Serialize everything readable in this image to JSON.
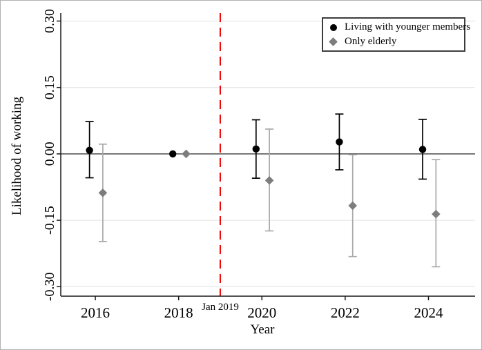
{
  "figure": {
    "background": "#ffffff",
    "border_color": "#b0b0b0"
  },
  "chart_data": {
    "type": "scatter",
    "subtype": "coefficient-plot-with-ci",
    "title": "",
    "xlabel": "Year",
    "ylabel": "Likelihood of working",
    "x_ticks": [
      2016,
      2018,
      2020,
      2022,
      2024
    ],
    "x_tick_labels": [
      "2016",
      "2018",
      "2020",
      "2022",
      "2024"
    ],
    "y_ticks": [
      0.3,
      0.15,
      0.0,
      -0.15,
      -0.3
    ],
    "y_tick_labels": [
      "0.30",
      "0.15",
      "0.00",
      "-0.15",
      "-0.30"
    ],
    "xlim": [
      2015.17,
      2025.12
    ],
    "ylim": [
      -0.32,
      0.315
    ],
    "grid": true,
    "zero_reference_line": 0,
    "legend_position": "top-right",
    "vline": {
      "x": 2019.0,
      "label": "Jan 2019",
      "color": "#ee0000",
      "style": "dashed"
    },
    "colors": {
      "grid": "#e8e8e8",
      "zero_line": "#3c3c3c",
      "axis": "#1a1a1a",
      "text": "#000000"
    },
    "series": [
      {
        "name": "Living with younger members",
        "marker": "circle",
        "color": "#000000",
        "bar_color": "#000000",
        "x_offset_years": -0.14,
        "x": [
          2016,
          2018,
          2020,
          2022,
          2024
        ],
        "y": [
          0.008,
          0.0,
          0.011,
          0.027,
          0.01
        ],
        "ci_high": [
          0.073,
          null,
          0.077,
          0.09,
          0.078
        ],
        "ci_low": [
          -0.054,
          null,
          -0.055,
          -0.036,
          -0.057
        ],
        "reference_year": 2018
      },
      {
        "name": "Only elderly",
        "marker": "diamond",
        "color": "#7d7d7d",
        "bar_color": "#a9a9a9",
        "x_offset_years": 0.18,
        "x": [
          2016,
          2018,
          2020,
          2022,
          2024
        ],
        "y": [
          -0.088,
          0.0,
          -0.06,
          -0.117,
          -0.136
        ],
        "ci_high": [
          0.022,
          null,
          0.056,
          -0.002,
          -0.013
        ],
        "ci_low": [
          -0.198,
          null,
          -0.174,
          -0.232,
          -0.255
        ],
        "reference_year": 2018
      }
    ]
  }
}
